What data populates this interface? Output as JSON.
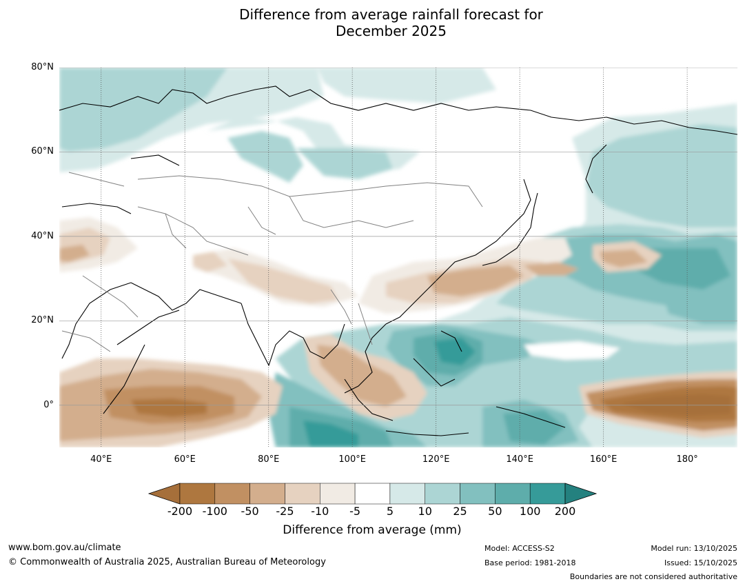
{
  "title_line1": "Difference from average rainfall forecast for",
  "title_line2": "December 2025",
  "map": {
    "extent": {
      "lon": [
        30,
        192
      ],
      "lat": [
        -10,
        80
      ]
    },
    "lat_ticks": [
      {
        "value": 80,
        "label": "80°N"
      },
      {
        "value": 60,
        "label": "60°N"
      },
      {
        "value": 40,
        "label": "40°N"
      },
      {
        "value": 20,
        "label": "20°N"
      },
      {
        "value": 0,
        "label": "0°"
      }
    ],
    "lon_ticks": [
      {
        "value": 40,
        "label": "40°E"
      },
      {
        "value": 60,
        "label": "60°E"
      },
      {
        "value": 80,
        "label": "80°E"
      },
      {
        "value": 100,
        "label": "100°E"
      },
      {
        "value": 120,
        "label": "120°E"
      },
      {
        "value": 140,
        "label": "140°E"
      },
      {
        "value": 160,
        "label": "160°E"
      },
      {
        "value": 180,
        "label": "180°"
      }
    ]
  },
  "legend": {
    "title": "Difference from average (mm)",
    "ticks": [
      "-200",
      "-100",
      "-50",
      "-25",
      "-10",
      "-5",
      "5",
      "10",
      "25",
      "50",
      "100",
      "200"
    ],
    "colors": [
      "#a66f3a",
      "#ae773f",
      "#c19062",
      "#d3ae8d",
      "#e6d2c0",
      "#f1ebe4",
      "#ffffff",
      "#d6e9e8",
      "#acd5d4",
      "#82c0bf",
      "#5eadab",
      "#369b99",
      "#24817f"
    ]
  },
  "footer": {
    "website": "www.bom.gov.au/climate",
    "copyright": "© Commonwealth of Australia 2025, Australian Bureau of Meteorology",
    "model": "Model: ACCESS-S2",
    "base_period": "Base period: 1981-2018",
    "model_run": "Model run: 13/10/2025",
    "issued": "Issued: 15/10/2025",
    "disclaimer": "Boundaries are not considered authoritative"
  }
}
